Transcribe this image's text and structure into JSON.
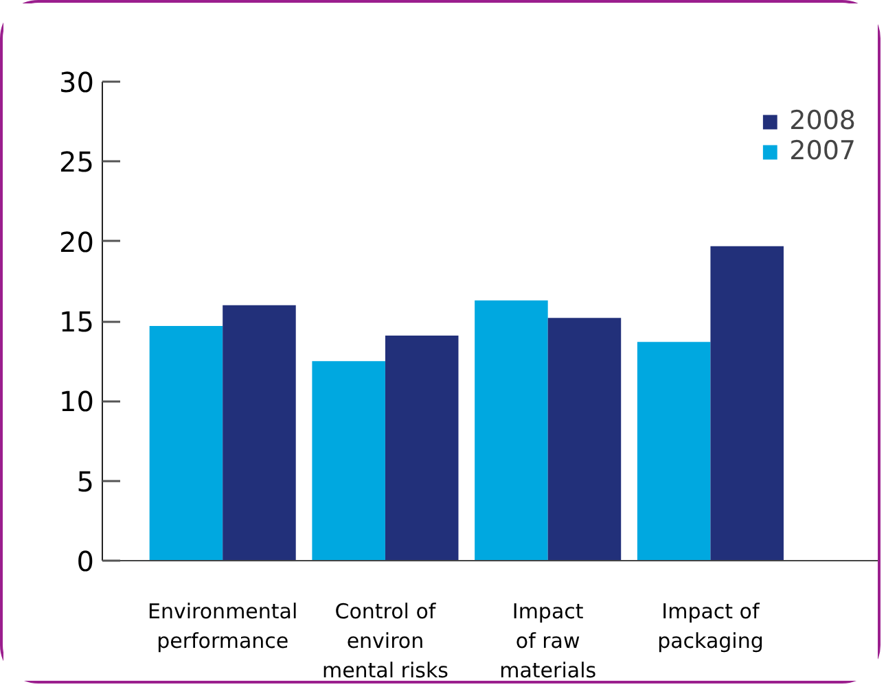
{
  "chart_data": {
    "type": "bar",
    "categories": [
      "Environmental\nperformance",
      "Control of\nenviron\nmental risks",
      "Impact\nof raw\nmaterials",
      "Impact of\npackaging"
    ],
    "series": [
      {
        "name": "2007",
        "color": "#00a8e0",
        "values": [
          14.7,
          12.5,
          16.3,
          13.7
        ]
      },
      {
        "name": "2008",
        "color": "#22307a",
        "values": [
          16.0,
          14.1,
          15.2,
          19.7
        ]
      }
    ],
    "ylim": [
      0,
      30
    ],
    "yticks": [
      0,
      5,
      10,
      15,
      20,
      25,
      30
    ],
    "legend": "top right"
  }
}
